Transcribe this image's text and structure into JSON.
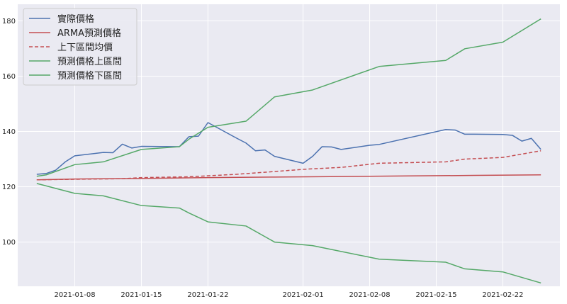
{
  "chart_data": {
    "type": "line",
    "title": "",
    "xlabel": "",
    "ylabel": "",
    "xlim": [
      "2021-01-02",
      "2021-02-28"
    ],
    "ylim": [
      84,
      186
    ],
    "grid": true,
    "legend_position": "top-left",
    "background": "#eaeaf2",
    "x_ticks": [
      "2021-01-08",
      "2021-01-15",
      "2021-01-22",
      "2021-02-01",
      "2021-02-08",
      "2021-02-15",
      "2021-02-22"
    ],
    "y_ticks": [
      100,
      120,
      140,
      160,
      180
    ],
    "series": [
      {
        "name": "實際價格",
        "color": "#4c72b0",
        "style": "solid",
        "points": [
          [
            "2021-01-04",
            124.5
          ],
          [
            "2021-01-05",
            124.8
          ],
          [
            "2021-01-06",
            126.0
          ],
          [
            "2021-01-07",
            129.0
          ],
          [
            "2021-01-08",
            131.2
          ],
          [
            "2021-01-11",
            132.4
          ],
          [
            "2021-01-12",
            132.3
          ],
          [
            "2021-01-13",
            135.4
          ],
          [
            "2021-01-14",
            134.0
          ],
          [
            "2021-01-15",
            134.6
          ],
          [
            "2021-01-19",
            134.5
          ],
          [
            "2021-01-20",
            138.1
          ],
          [
            "2021-01-21",
            138.3
          ],
          [
            "2021-01-22",
            143.2
          ],
          [
            "2021-01-25",
            137.6
          ],
          [
            "2021-01-26",
            135.8
          ],
          [
            "2021-01-27",
            133.0
          ],
          [
            "2021-01-28",
            133.3
          ],
          [
            "2021-01-29",
            131.0
          ],
          [
            "2021-02-01",
            128.5
          ],
          [
            "2021-02-02",
            131.0
          ],
          [
            "2021-02-03",
            134.5
          ],
          [
            "2021-02-04",
            134.4
          ],
          [
            "2021-02-05",
            133.5
          ],
          [
            "2021-02-08",
            135.0
          ],
          [
            "2021-02-09",
            135.3
          ],
          [
            "2021-02-16",
            140.7
          ],
          [
            "2021-02-17",
            140.5
          ],
          [
            "2021-02-18",
            139.0
          ],
          [
            "2021-02-19",
            139.0
          ],
          [
            "2021-02-22",
            138.9
          ],
          [
            "2021-02-23",
            138.6
          ],
          [
            "2021-02-24",
            136.5
          ],
          [
            "2021-02-25",
            137.5
          ],
          [
            "2021-02-26",
            133.5
          ]
        ]
      },
      {
        "name": "ARMA預測價格",
        "color": "#c44e52",
        "style": "solid",
        "points": [
          [
            "2021-01-04",
            122.5
          ],
          [
            "2021-01-08",
            122.8
          ],
          [
            "2021-01-15",
            123.0
          ],
          [
            "2021-01-22",
            123.3
          ],
          [
            "2021-01-29",
            123.5
          ],
          [
            "2021-02-05",
            123.7
          ],
          [
            "2021-02-12",
            123.9
          ],
          [
            "2021-02-19",
            124.1
          ],
          [
            "2021-02-26",
            124.3
          ]
        ]
      },
      {
        "name": "上下區間均價",
        "color": "#c44e52",
        "style": "dashed",
        "points": [
          [
            "2021-01-04",
            122.5
          ],
          [
            "2021-01-08",
            122.7
          ],
          [
            "2021-01-13",
            122.9
          ],
          [
            "2021-01-15",
            123.3
          ],
          [
            "2021-01-20",
            123.6
          ],
          [
            "2021-01-25",
            124.5
          ],
          [
            "2021-01-29",
            125.5
          ],
          [
            "2021-02-01",
            126.3
          ],
          [
            "2021-02-05",
            127.0
          ],
          [
            "2021-02-09",
            128.5
          ],
          [
            "2021-02-16",
            129.0
          ],
          [
            "2021-02-18",
            130.0
          ],
          [
            "2021-02-22",
            130.6
          ],
          [
            "2021-02-26",
            133.0
          ]
        ]
      },
      {
        "name": "預測價格上區間",
        "color": "#55a868",
        "style": "solid",
        "points": [
          [
            "2021-01-04",
            123.8
          ],
          [
            "2021-01-05",
            124.3
          ],
          [
            "2021-01-08",
            128.0
          ],
          [
            "2021-01-11",
            129.0
          ],
          [
            "2021-01-15",
            133.5
          ],
          [
            "2021-01-19",
            134.5
          ],
          [
            "2021-01-20",
            137.2
          ],
          [
            "2021-01-22",
            141.5
          ],
          [
            "2021-01-26",
            143.7
          ],
          [
            "2021-01-29",
            152.5
          ],
          [
            "2021-02-02",
            155.0
          ],
          [
            "2021-02-09",
            163.5
          ],
          [
            "2021-02-16",
            165.7
          ],
          [
            "2021-02-18",
            169.9
          ],
          [
            "2021-02-22",
            172.3
          ],
          [
            "2021-02-26",
            180.7
          ]
        ]
      },
      {
        "name": "預測價格下區間",
        "color": "#55a868",
        "style": "solid",
        "points": [
          [
            "2021-01-04",
            121.2
          ],
          [
            "2021-01-08",
            117.6
          ],
          [
            "2021-01-11",
            116.7
          ],
          [
            "2021-01-15",
            113.2
          ],
          [
            "2021-01-19",
            112.3
          ],
          [
            "2021-01-20",
            110.5
          ],
          [
            "2021-01-22",
            107.3
          ],
          [
            "2021-01-26",
            105.8
          ],
          [
            "2021-01-29",
            100.0
          ],
          [
            "2021-02-02",
            98.7
          ],
          [
            "2021-02-09",
            93.8
          ],
          [
            "2021-02-16",
            92.7
          ],
          [
            "2021-02-18",
            90.3
          ],
          [
            "2021-02-22",
            89.2
          ],
          [
            "2021-02-26",
            85.2
          ]
        ]
      }
    ]
  }
}
